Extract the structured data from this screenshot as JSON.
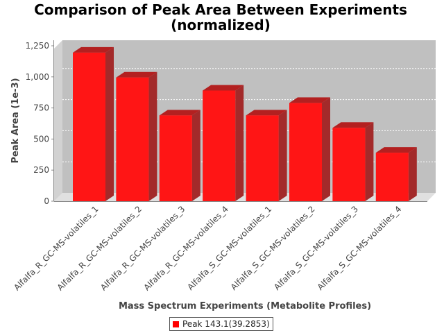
{
  "chart_data": {
    "type": "bar",
    "title_line1": "Comparison of Peak Area Between Experiments",
    "title_line2": "(normalized)",
    "xlabel": "Mass Spectrum Experiments (Metabolite Profiles)",
    "ylabel": "Peak Area (1e-3)",
    "ylim": [
      0,
      1300
    ],
    "yticks": [
      0,
      250,
      500,
      750,
      1000,
      1250
    ],
    "ytick_labels": [
      "0",
      "250",
      "500",
      "750",
      "1,000",
      "1,250"
    ],
    "grid": true,
    "legend_position": "bottom-center",
    "categories": [
      "Alfalfa_R_GC-MS-volatiles_1",
      "Alfalfa_R_GC-MS-volatiles_2",
      "Alfalfa_R_GC-MS-volatiles_3",
      "Alfalfa_R_GC-MS-volatiles_4",
      "Alfalfa_S_GC-MS-volatiles_1",
      "Alfalfa_S_GC-MS-volatiles_2",
      "Alfalfa_S_GC-MS-volatiles_3",
      "Alfalfa_S_GC-MS-volatiles_4"
    ],
    "series": [
      {
        "name": "Peak 143.1(39.2853)",
        "color": "#ff0000",
        "values": [
          1195,
          995,
          690,
          890,
          690,
          790,
          590,
          390
        ]
      }
    ]
  }
}
